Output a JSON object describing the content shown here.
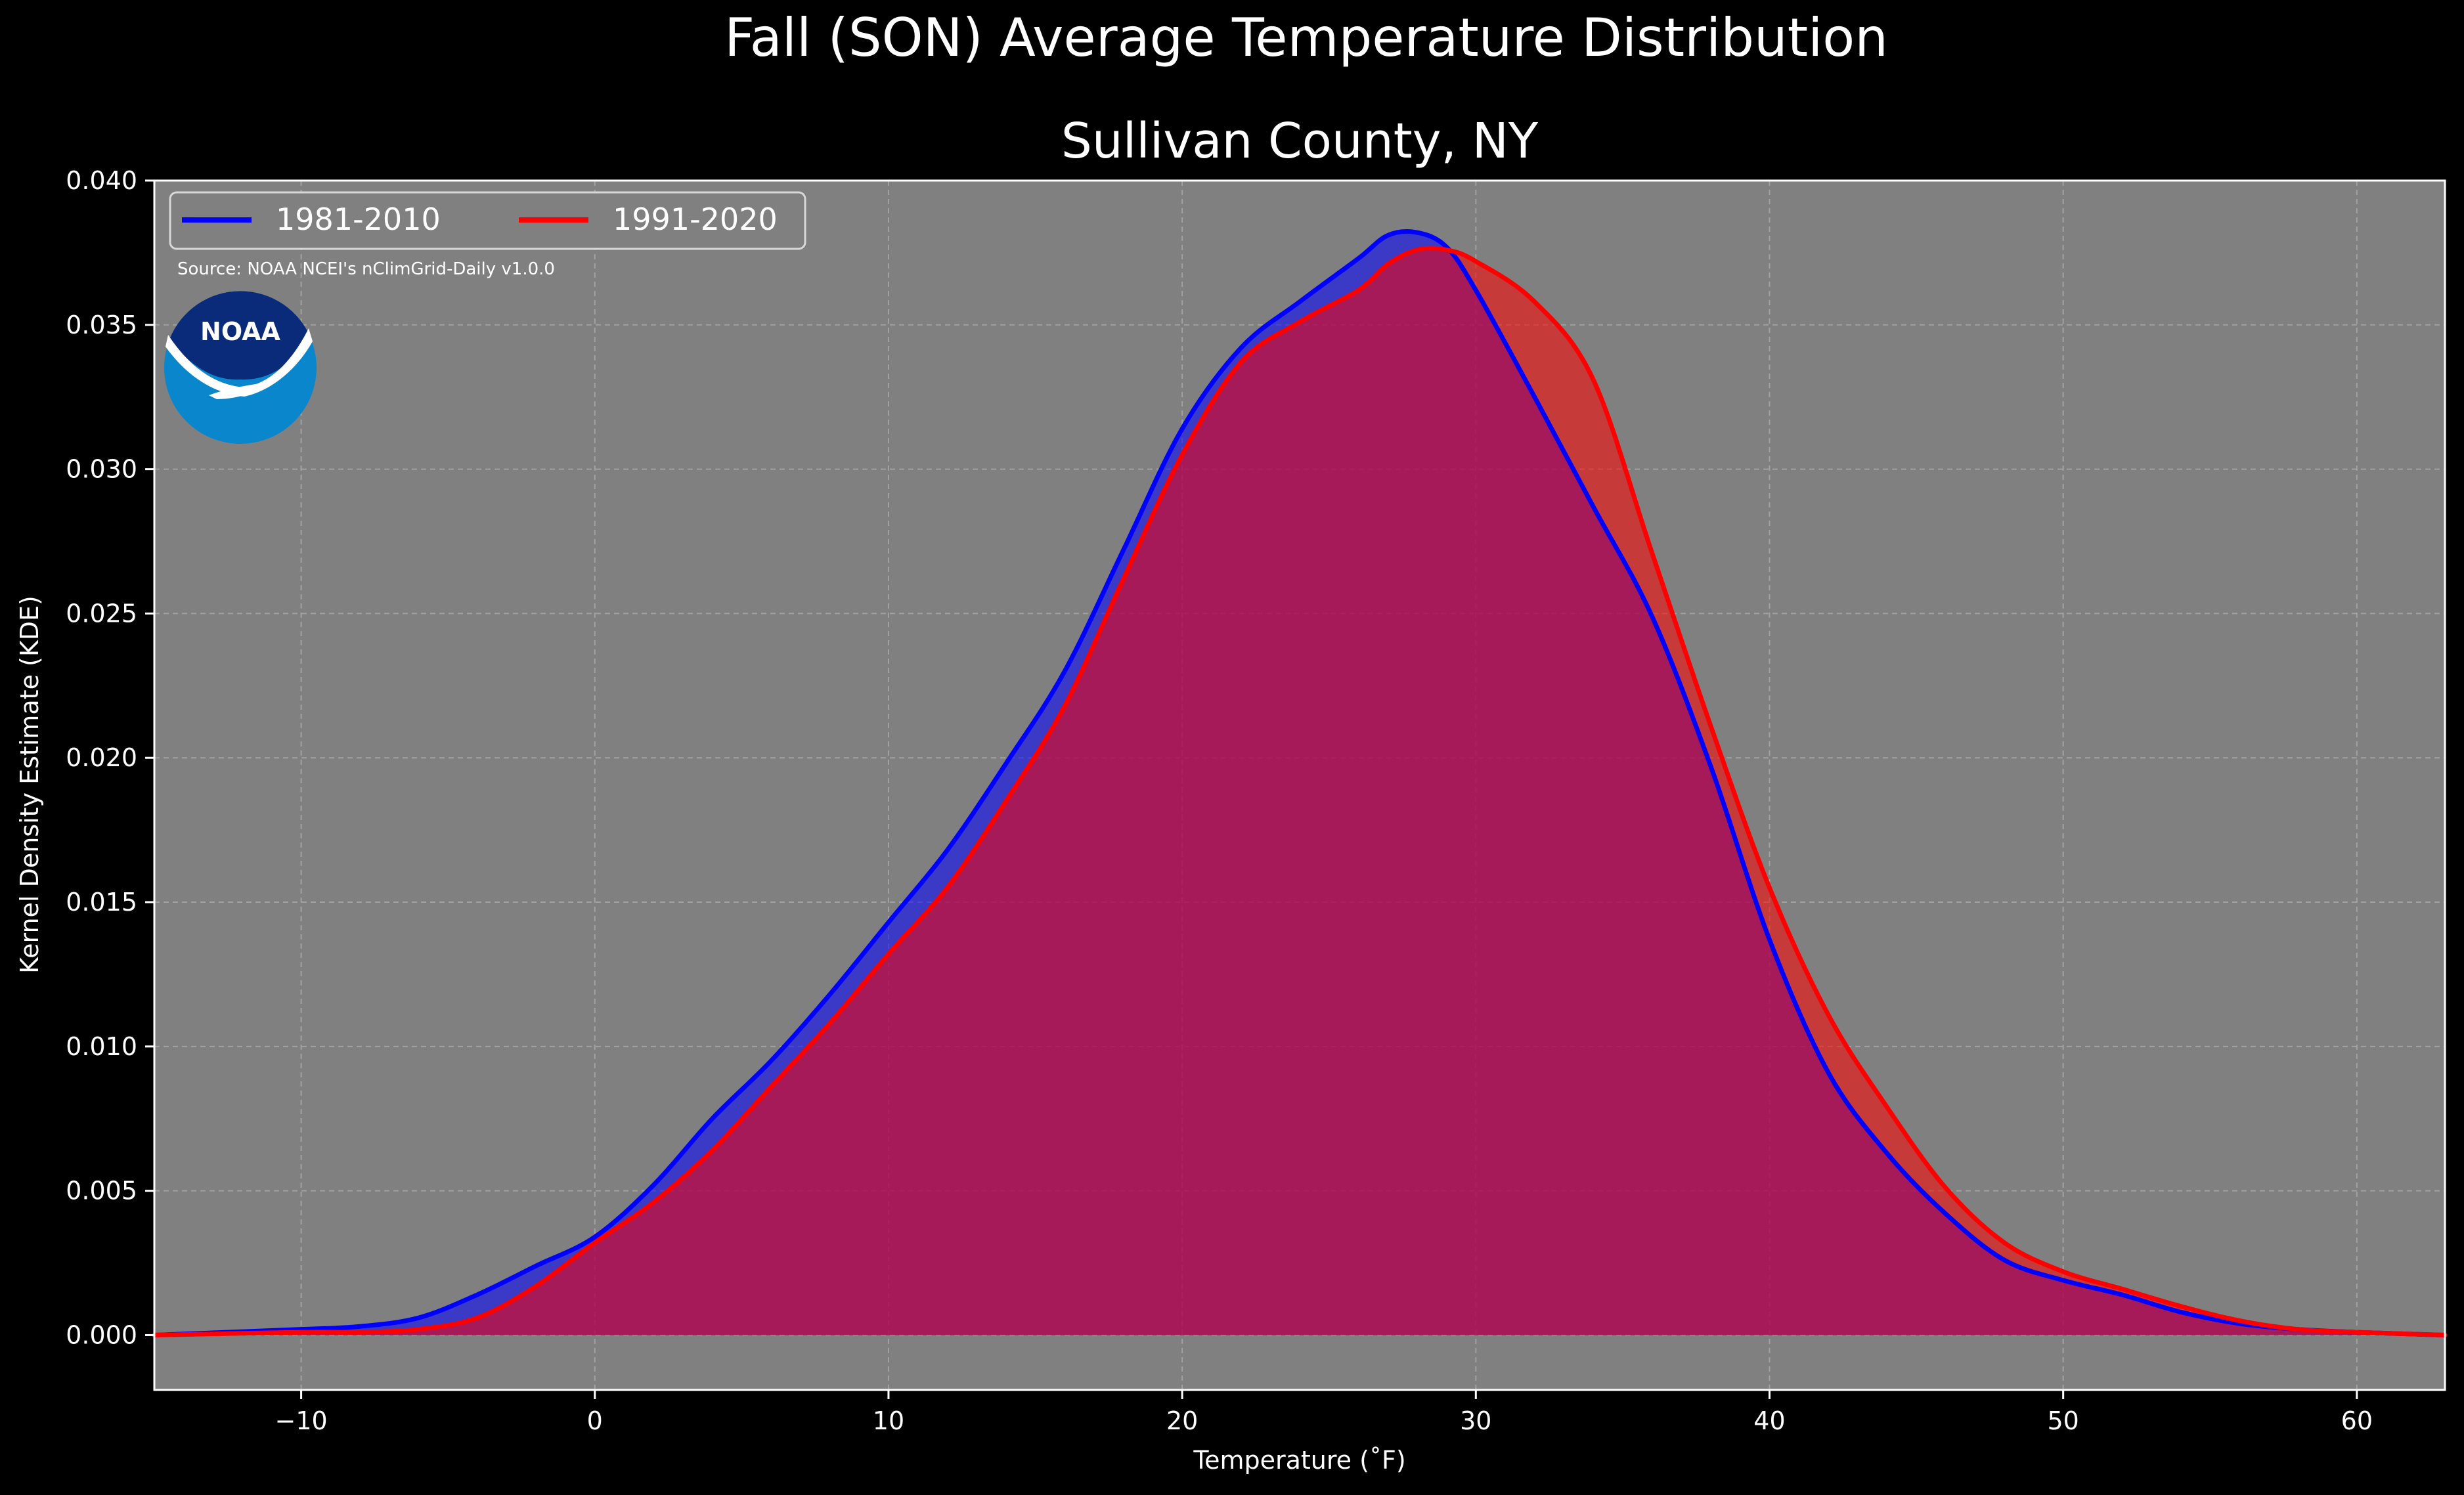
{
  "chart_data": {
    "type": "area",
    "title": "Fall (SON) Average Temperature Distribution",
    "subtitle": "Sullivan County, NY",
    "xlabel": "Temperature ($^\\circ$F)",
    "xlabel_display": "Temperature (˚F)",
    "ylabel": "Kernel Density Estimate (KDE)",
    "xlim": [
      -15,
      63
    ],
    "ylim": [
      -0.0019,
      0.04
    ],
    "xticks": [
      -10,
      0,
      10,
      20,
      30,
      40,
      50,
      60
    ],
    "xtick_labels": [
      "−10",
      "0",
      "10",
      "20",
      "30",
      "40",
      "50",
      "60"
    ],
    "yticks": [
      0.0,
      0.005,
      0.01,
      0.015,
      0.02,
      0.025,
      0.03,
      0.035,
      0.04
    ],
    "ytick_labels": [
      "0.000",
      "0.005",
      "0.010",
      "0.015",
      "0.020",
      "0.025",
      "0.030",
      "0.035",
      "0.040"
    ],
    "grid": true,
    "legend_position": "top-left",
    "source_note": "Source: NOAA NCEI's nClimGrid-Daily v1.0.0",
    "logo_text": "NOAA",
    "colors": {
      "background": "#000000",
      "plot_background": "#808080",
      "grid": "#b0b0b0",
      "series_1981_2010": "#0000ff",
      "series_1991_2020": "#ff0000",
      "overlap_fill": "#9b1f5e"
    },
    "series": [
      {
        "name": "1981-2010",
        "color": "#0000ff",
        "x": [
          -15,
          -10,
          -8,
          -6,
          -4,
          -2,
          0,
          2,
          4,
          6,
          8,
          10,
          12,
          14,
          16,
          18,
          20,
          22,
          24,
          26,
          27,
          28,
          29,
          30,
          32,
          34,
          36,
          38,
          40,
          42,
          44,
          46,
          48,
          50,
          52,
          54,
          56,
          58,
          60,
          63
        ],
        "values": [
          0.0,
          0.0002,
          0.0003,
          0.0006,
          0.0014,
          0.0024,
          0.0034,
          0.0052,
          0.0075,
          0.0095,
          0.0118,
          0.0143,
          0.0168,
          0.0198,
          0.023,
          0.0272,
          0.0314,
          0.0342,
          0.0358,
          0.0373,
          0.0381,
          0.0382,
          0.0377,
          0.0362,
          0.0325,
          0.0287,
          0.0249,
          0.0197,
          0.0137,
          0.0091,
          0.0063,
          0.0042,
          0.0026,
          0.0019,
          0.0014,
          0.0008,
          0.0004,
          0.0002,
          0.0001,
          0.0
        ]
      },
      {
        "name": "1991-2020",
        "color": "#ff0000",
        "x": [
          -15,
          -10,
          -8,
          -6,
          -4,
          -2,
          0,
          2,
          4,
          6,
          8,
          10,
          12,
          14,
          16,
          18,
          20,
          22,
          24,
          26,
          27,
          28,
          29,
          30,
          32,
          34,
          36,
          38,
          40,
          42,
          44,
          46,
          48,
          50,
          52,
          54,
          56,
          58,
          60,
          63
        ],
        "values": [
          0.0,
          0.0001,
          0.0001,
          0.0002,
          0.0006,
          0.0017,
          0.0032,
          0.0046,
          0.0064,
          0.0086,
          0.0108,
          0.0132,
          0.0155,
          0.0185,
          0.0218,
          0.0262,
          0.0305,
          0.0337,
          0.0351,
          0.0362,
          0.0371,
          0.0376,
          0.0376,
          0.0372,
          0.0358,
          0.0331,
          0.0271,
          0.0211,
          0.0155,
          0.0111,
          0.0079,
          0.0051,
          0.0032,
          0.0022,
          0.0016,
          0.001,
          0.0005,
          0.0002,
          0.0001,
          0.0
        ]
      }
    ]
  }
}
